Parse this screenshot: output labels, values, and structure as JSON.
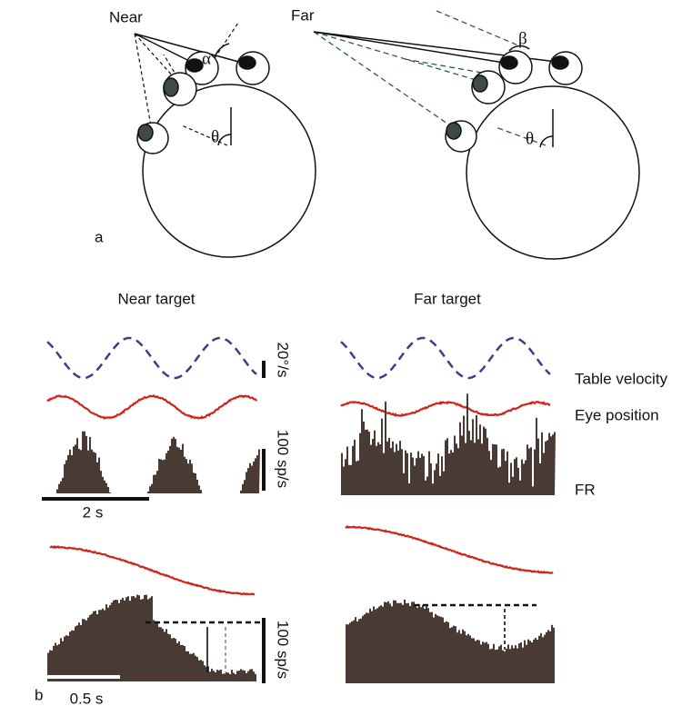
{
  "panel_a": {
    "label": "a",
    "near": {
      "label": "Near",
      "alpha": "α",
      "theta": "θ"
    },
    "far": {
      "label": "Far",
      "beta": "β",
      "theta": "θ"
    }
  },
  "panel_b": {
    "label": "b",
    "near_title": "Near target",
    "far_title": "Far target",
    "scale_velocity": "20°/s",
    "scale_fr_top": "100 sp/s",
    "scale_time_top": "2 s",
    "scale_fr_bottom": "100 sp/s",
    "scale_time_bottom": "0.5 s",
    "legend": [
      "Table velocity",
      "Eye position",
      "FR"
    ]
  }
}
